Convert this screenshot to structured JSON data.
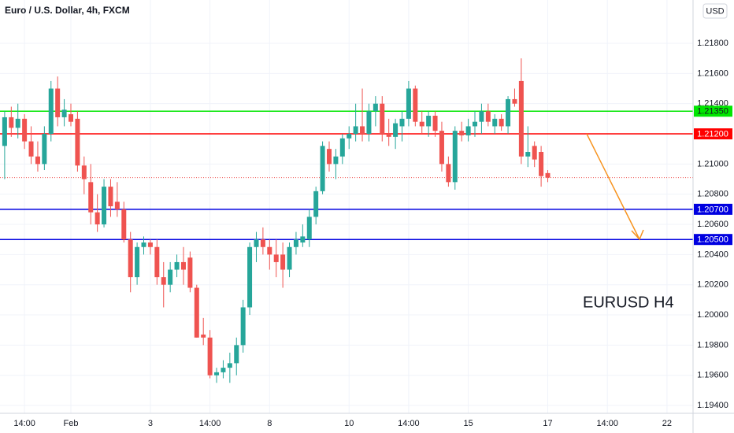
{
  "chart_data": {
    "type": "candlestick",
    "title": "Euro / U.S. Dollar, 4h, FXCM",
    "currency": "USD",
    "annotation": "EURUSD H4",
    "up_color": "#26a69a",
    "down_color": "#ef5350",
    "ylim": [
      1.19348,
      1.22087
    ],
    "yticks": [
      {
        "value": 1.194,
        "label": "1.19400"
      },
      {
        "value": 1.196,
        "label": "1.19600"
      },
      {
        "value": 1.198,
        "label": "1.19800"
      },
      {
        "value": 1.2,
        "label": "1.20000"
      },
      {
        "value": 1.202,
        "label": "1.20200"
      },
      {
        "value": 1.204,
        "label": "1.20400"
      },
      {
        "value": 1.206,
        "label": "1.20600"
      },
      {
        "value": 1.208,
        "label": "1.20800"
      },
      {
        "value": 1.21,
        "label": "1.21000"
      },
      {
        "value": 1.212,
        "label": "1.21200"
      },
      {
        "value": 1.214,
        "label": "1.21400"
      },
      {
        "value": 1.216,
        "label": "1.21600"
      },
      {
        "value": 1.218,
        "label": "1.21800"
      }
    ],
    "levels": [
      {
        "value": 1.2135,
        "label": "1.21350",
        "color": "#00e600"
      },
      {
        "value": 1.212,
        "label": "1.21200",
        "color": "#ff0000"
      },
      {
        "value": 1.207,
        "label": "1.20700",
        "color": "#0000e0"
      },
      {
        "value": 1.205,
        "label": "1.20500",
        "color": "#0000e0"
      }
    ],
    "last_price": 1.2091,
    "categories": [
      null,
      null,
      null,
      "14:00",
      null,
      null,
      null,
      null,
      null,
      null,
      "Feb",
      null,
      null,
      null,
      null,
      null,
      null,
      null,
      null,
      null,
      null,
      null,
      "3",
      null,
      null,
      null,
      null,
      null,
      null,
      null,
      null,
      "14:00",
      null,
      null,
      null,
      null,
      null,
      null,
      null,
      null,
      "8",
      null,
      null,
      null,
      null,
      null,
      null,
      null,
      null,
      null,
      null,
      null,
      "10",
      null,
      null,
      null,
      null,
      null,
      null,
      null,
      null,
      "14:00",
      null,
      null,
      null,
      null,
      null,
      null,
      null,
      null,
      "15",
      null,
      null,
      null,
      null,
      null,
      null,
      null,
      null,
      null,
      null,
      null,
      "17",
      null,
      null,
      null,
      null,
      null,
      null,
      null,
      null,
      "14:00",
      null,
      null,
      null,
      null,
      null,
      null,
      null,
      null,
      "22"
    ],
    "open": [
      1.2112,
      1.2131,
      1.2124,
      1.213,
      1.2115,
      1.2105,
      1.21,
      1.212,
      1.215,
      1.2131,
      1.2133,
      1.213,
      1.2099,
      1.2088,
      1.2068,
      1.206,
      1.2085,
      1.2075,
      1.207,
      1.205,
      1.2025,
      1.2045,
      1.2048,
      1.2045,
      1.2025,
      1.202,
      1.203,
      1.2035,
      1.2038,
      1.2018,
      1.1987,
      1.1985,
      1.196,
      1.1962,
      1.1965,
      1.1968,
      1.198,
      1.2005,
      1.2045,
      1.205,
      1.2045,
      1.204,
      1.204,
      1.203,
      1.2045,
      1.2048,
      1.205,
      1.2065,
      1.2082,
      1.211,
      1.21,
      1.2105,
      1.2117,
      1.212,
      1.2125,
      1.212,
      1.2135,
      1.214,
      1.212,
      1.2118,
      1.2125,
      1.213,
      1.215,
      1.2128,
      1.2125,
      1.2132,
      1.2122,
      1.21,
      1.2088,
      1.2122,
      1.2119,
      1.2125,
      1.2128,
      1.2135,
      1.2125,
      1.213,
      1.2125,
      1.2143,
      1.2155,
      1.2105,
      1.2112,
      1.2108,
      1.2094,
      null,
      null,
      null,
      null,
      null,
      null,
      null,
      null,
      null,
      null,
      null,
      null,
      null,
      null,
      null,
      null,
      null,
      null
    ],
    "high": [
      1.2135,
      1.2138,
      1.214,
      1.2133,
      1.2125,
      1.2115,
      1.2125,
      1.2155,
      1.2158,
      1.2143,
      1.214,
      1.2135,
      1.2105,
      1.21,
      1.208,
      1.209,
      1.209,
      1.2088,
      1.2075,
      1.2055,
      1.2048,
      1.2052,
      1.205,
      1.205,
      1.2035,
      1.2035,
      1.204,
      1.2045,
      1.2042,
      1.202,
      1.1998,
      1.199,
      1.1965,
      1.197,
      1.1975,
      1.1985,
      1.201,
      1.2048,
      1.2055,
      1.2058,
      1.205,
      1.205,
      1.2048,
      1.2048,
      1.2055,
      1.206,
      1.207,
      1.2085,
      1.2115,
      1.2115,
      1.211,
      1.212,
      1.2125,
      1.214,
      1.215,
      1.214,
      1.2145,
      1.2145,
      1.213,
      1.213,
      1.2135,
      1.2155,
      1.2152,
      1.2135,
      1.2135,
      1.2135,
      1.2128,
      1.2105,
      1.2125,
      1.2128,
      1.213,
      1.2135,
      1.214,
      1.214,
      1.2133,
      1.2133,
      1.2145,
      1.215,
      1.217,
      1.2125,
      1.2115,
      1.2112,
      1.2096,
      null,
      null,
      null,
      null,
      null,
      null,
      null,
      null,
      null,
      null,
      null,
      null,
      null,
      null,
      null,
      null,
      null,
      null
    ],
    "low": [
      1.209,
      1.2118,
      1.2117,
      1.211,
      1.21,
      1.2095,
      1.2096,
      1.2115,
      1.2125,
      1.2125,
      1.2125,
      1.2095,
      1.208,
      1.206,
      1.2055,
      1.2058,
      1.2065,
      1.2065,
      1.2048,
      1.2015,
      1.202,
      1.204,
      1.204,
      1.202,
      1.2005,
      1.2015,
      1.2025,
      1.202,
      1.2015,
      1.1985,
      1.198,
      1.1958,
      1.1955,
      1.1958,
      1.1955,
      1.196,
      1.1975,
      1.2,
      1.2035,
      1.204,
      1.203,
      1.2025,
      1.2018,
      1.2025,
      1.204,
      1.2045,
      1.2045,
      1.206,
      1.208,
      1.2095,
      1.209,
      1.21,
      1.211,
      1.2115,
      1.2115,
      1.2115,
      1.2125,
      1.2115,
      1.2112,
      1.211,
      1.2115,
      1.2125,
      1.2125,
      1.212,
      1.2118,
      1.2118,
      1.2095,
      1.2085,
      1.2083,
      1.2115,
      1.2115,
      1.2118,
      1.212,
      1.2125,
      1.212,
      1.2122,
      1.212,
      1.2138,
      1.21,
      1.2098,
      1.2098,
      1.2085,
      1.2088,
      null,
      null,
      null,
      null,
      null,
      null,
      null,
      null,
      null,
      null,
      null,
      null,
      null,
      null,
      null,
      null,
      null,
      null
    ],
    "close": [
      1.2131,
      1.2124,
      1.213,
      1.2115,
      1.2105,
      1.21,
      1.212,
      1.215,
      1.2131,
      1.2136,
      1.2128,
      1.2099,
      1.209,
      1.2068,
      1.206,
      1.2085,
      1.2072,
      1.207,
      1.205,
      1.2025,
      1.2045,
      1.2048,
      1.2045,
      1.2025,
      1.202,
      1.203,
      1.2035,
      1.203,
      1.2018,
      1.1985,
      1.1985,
      1.196,
      1.1962,
      1.1965,
      1.1968,
      1.198,
      1.2005,
      1.2045,
      1.205,
      1.2045,
      1.204,
      1.2035,
      1.203,
      1.2045,
      1.205,
      1.2052,
      1.2065,
      1.2082,
      1.2112,
      1.21,
      1.2105,
      1.2117,
      1.212,
      1.2125,
      1.212,
      1.2135,
      1.214,
      1.212,
      1.2118,
      1.2127,
      1.213,
      1.215,
      1.2128,
      1.2125,
      1.2132,
      1.2122,
      1.21,
      1.2088,
      1.2122,
      1.2119,
      1.2125,
      1.2128,
      1.2135,
      1.2128,
      1.213,
      1.2125,
      1.2143,
      1.214,
      1.2105,
      1.2108,
      1.2103,
      1.2092,
      1.2091,
      null,
      null,
      null,
      null,
      null,
      null,
      null,
      null,
      null,
      null,
      null,
      null,
      null,
      null,
      null,
      null,
      null,
      null
    ]
  }
}
